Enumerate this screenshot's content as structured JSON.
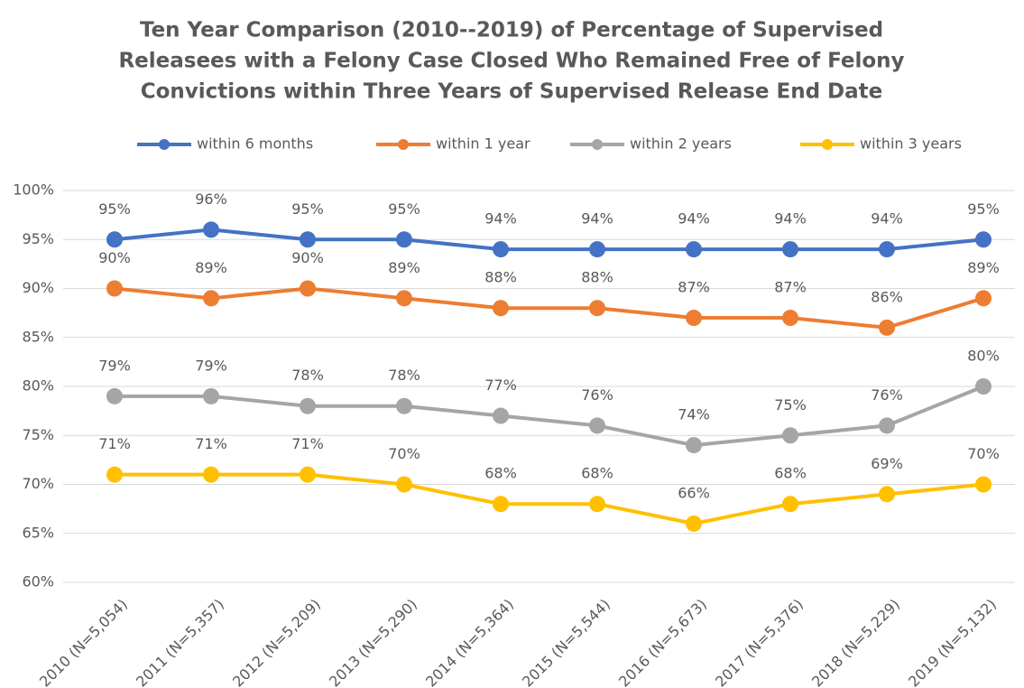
{
  "chart_data": {
    "type": "line",
    "title": [
      "Ten Year Comparison (2010--2019) of Percentage of Supervised",
      "Releasees with a Felony Case Closed Who Remained Free of Felony",
      "Convictions within Three Years of Supervised Release End Date"
    ],
    "categories": [
      "2010 (N=5,054)",
      "2011 (N=5,357)",
      "2012 (N=5,209)",
      "2013 (N=5,290)",
      "2014 (N=5,364)",
      "2015 (N=5,544)",
      "2016 (N=5,673)",
      "2017 (N=5,376)",
      "2018 (N=5,229)",
      "2019 (N=5,132)"
    ],
    "series": [
      {
        "name": "within 6 months",
        "color": "#4472c4",
        "values": [
          95,
          96,
          95,
          95,
          94,
          94,
          94,
          94,
          94,
          95
        ],
        "value_labels": [
          "95%",
          "96%",
          "95%",
          "95%",
          "94%",
          "94%",
          "94%",
          "94%",
          "94%",
          "95%"
        ]
      },
      {
        "name": "within 1 year",
        "color": "#ed7d31",
        "values": [
          90,
          89,
          90,
          89,
          88,
          88,
          87,
          87,
          86,
          89
        ],
        "value_labels": [
          "90%",
          "89%",
          "90%",
          "89%",
          "88%",
          "88%",
          "87%",
          "87%",
          "86%",
          "89%"
        ]
      },
      {
        "name": "within 2 years",
        "color": "#a5a5a5",
        "values": [
          79,
          79,
          78,
          78,
          77,
          76,
          74,
          75,
          76,
          80
        ],
        "value_labels": [
          "79%",
          "79%",
          "78%",
          "78%",
          "77%",
          "76%",
          "74%",
          "75%",
          "76%",
          "80%"
        ]
      },
      {
        "name": "within 3 years",
        "color": "#ffc000",
        "values": [
          71,
          71,
          71,
          70,
          68,
          68,
          66,
          68,
          69,
          70
        ],
        "value_labels": [
          "71%",
          "71%",
          "71%",
          "70%",
          "68%",
          "68%",
          "66%",
          "68%",
          "69%",
          "70%"
        ]
      }
    ],
    "ylim": [
      60,
      100
    ],
    "yticks": [
      {
        "value": 60,
        "label": "60%"
      },
      {
        "value": 65,
        "label": "65%"
      },
      {
        "value": 70,
        "label": "70%"
      },
      {
        "value": 75,
        "label": "75%"
      },
      {
        "value": 80,
        "label": "80%"
      },
      {
        "value": 85,
        "label": "85%"
      },
      {
        "value": 90,
        "label": "90%"
      },
      {
        "value": 95,
        "label": "95%"
      },
      {
        "value": 100,
        "label": "100%"
      }
    ],
    "grid": true,
    "legend": "top"
  }
}
